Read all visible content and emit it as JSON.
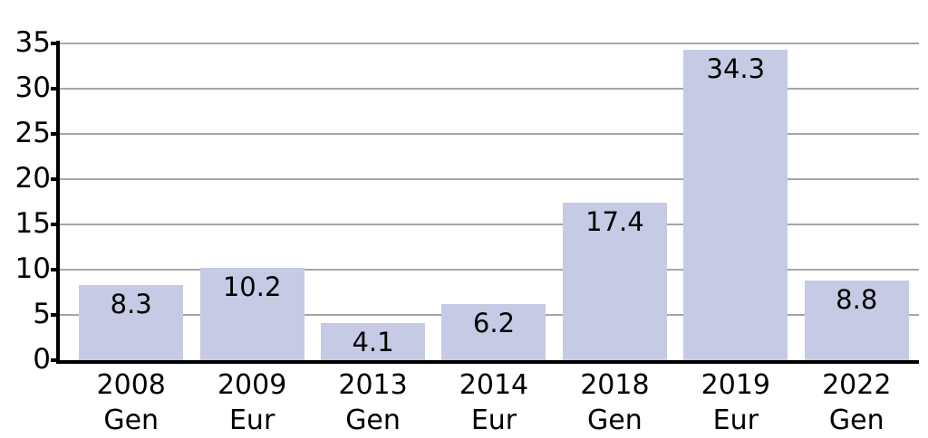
{
  "chart_data": {
    "type": "bar",
    "title": "",
    "xlabel": "",
    "ylabel": "",
    "categories": [
      {
        "year": "2008",
        "group": "Gen"
      },
      {
        "year": "2009",
        "group": "Eur"
      },
      {
        "year": "2013",
        "group": "Gen"
      },
      {
        "year": "2014",
        "group": "Eur"
      },
      {
        "year": "2018",
        "group": "Gen"
      },
      {
        "year": "2019",
        "group": "Eur"
      },
      {
        "year": "2022",
        "group": "Gen"
      }
    ],
    "values": [
      8.3,
      10.2,
      4.1,
      6.2,
      17.4,
      34.3,
      8.8
    ],
    "value_labels": [
      "8.3",
      "10.2",
      "4.1",
      "6.2",
      "17.4",
      "34.3",
      "8.8"
    ],
    "ylim": [
      0,
      35
    ],
    "y_ticks": [
      0,
      5,
      10,
      15,
      20,
      25,
      30,
      35
    ],
    "grid": "horizontal",
    "legend": "none",
    "colors": {
      "bar_fill": "#c6cae4",
      "gridline": "#a6a6a6",
      "axis": "#000000",
      "text": "#000000",
      "background": "#ffffff"
    }
  }
}
